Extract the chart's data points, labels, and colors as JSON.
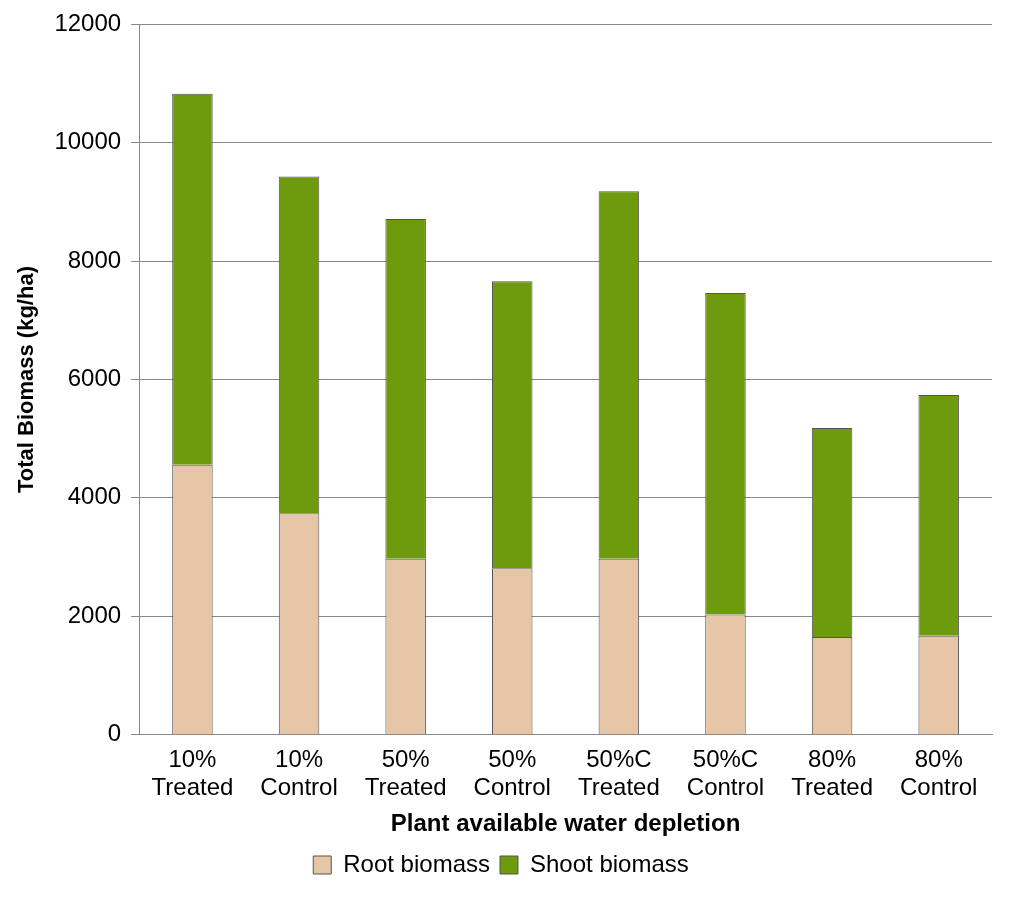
{
  "chart_data": {
    "type": "bar",
    "stacked": true,
    "xlabel": "Plant available water depletion",
    "ylabel": "Total Biomass (kg/ha)",
    "categories": [
      "10% Treated",
      "10% Control",
      "50% Treated",
      "50% Control",
      "50%C Treated",
      "50%C Control",
      "80% Treated",
      "80% Control"
    ],
    "series": [
      {
        "name": "Root biomass",
        "color": "#e6c6a6",
        "values": [
          4560,
          3740,
          2970,
          2810,
          2970,
          2030,
          1650,
          1670
        ]
      },
      {
        "name": "Shoot biomass",
        "color": "#6e9a0e",
        "values": [
          6270,
          5690,
          5740,
          4850,
          6210,
          5430,
          3530,
          4070
        ]
      }
    ],
    "ylim": [
      0,
      12000
    ],
    "yticks": [
      0,
      2000,
      4000,
      6000,
      8000,
      10000,
      12000
    ],
    "grid": "y",
    "legend": "bottom"
  }
}
